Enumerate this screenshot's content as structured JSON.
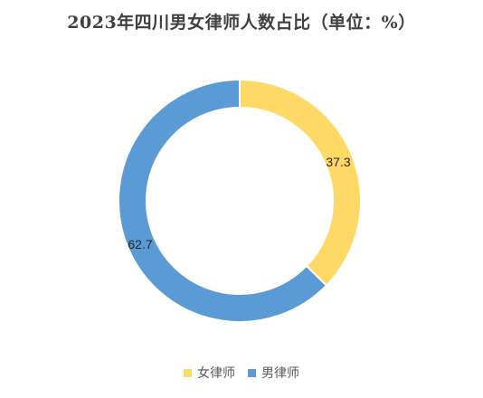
{
  "chart_data": {
    "type": "pie",
    "variant": "donut",
    "title": "2023年四川男女律师人数占比（单位：%）",
    "categories": [
      "女律师",
      "男律师"
    ],
    "values": [
      37.3,
      62.7
    ],
    "colors": [
      "#FFD966",
      "#5B9BD5"
    ],
    "data_labels": [
      "37.3",
      "62.7"
    ],
    "legend_position": "bottom"
  }
}
